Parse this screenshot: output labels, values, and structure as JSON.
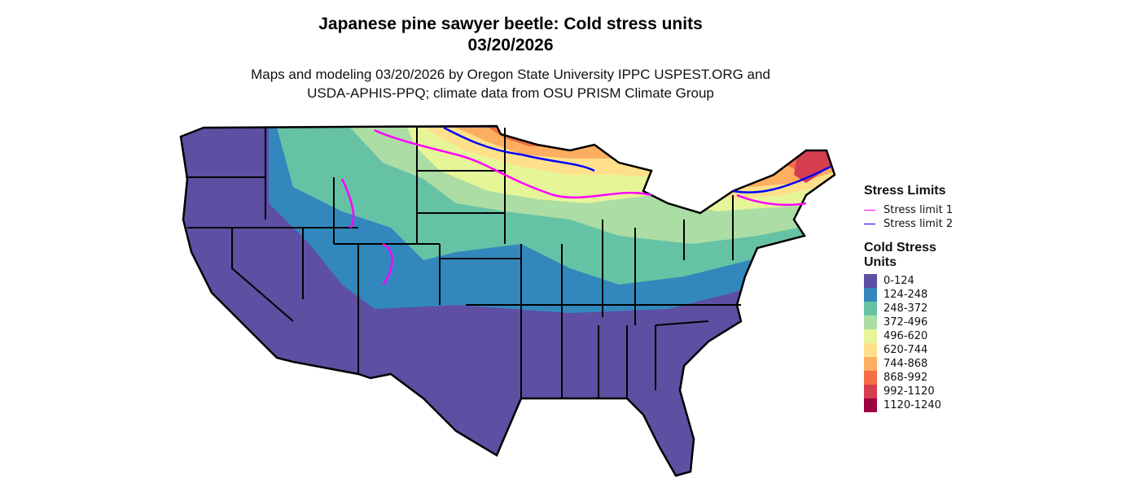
{
  "title_line1": "Japanese pine sawyer beetle: Cold stress units",
  "title_line2": "03/20/2026",
  "subtitle_line1": "Maps and modeling 03/20/2026 by Oregon State University IPPC USPEST.ORG and",
  "subtitle_line2": "USDA-APHIS-PPQ; climate data from OSU PRISM Climate Group",
  "legend_limits": {
    "title": "Stress Limits",
    "items": [
      {
        "label": "Stress limit 1",
        "color": "#FF00FF"
      },
      {
        "label": "Stress limit 2",
        "color": "#0000FF"
      }
    ]
  },
  "legend_units": {
    "title_line1": "Cold Stress",
    "title_line2": "Units",
    "items": [
      {
        "label": "0-124",
        "color": "#5E4FA2"
      },
      {
        "label": "124-248",
        "color": "#3288BD"
      },
      {
        "label": "248-372",
        "color": "#66C2A5"
      },
      {
        "label": "372-496",
        "color": "#ABDDA4"
      },
      {
        "label": "496-620",
        "color": "#E6F598"
      },
      {
        "label": "620-744",
        "color": "#FEE08B"
      },
      {
        "label": "744-868",
        "color": "#FDAE61"
      },
      {
        "label": "868-992",
        "color": "#F46D43"
      },
      {
        "label": "992-1120",
        "color": "#D53E4F"
      },
      {
        "label": "1120-1240",
        "color": "#9E0142"
      }
    ]
  }
}
